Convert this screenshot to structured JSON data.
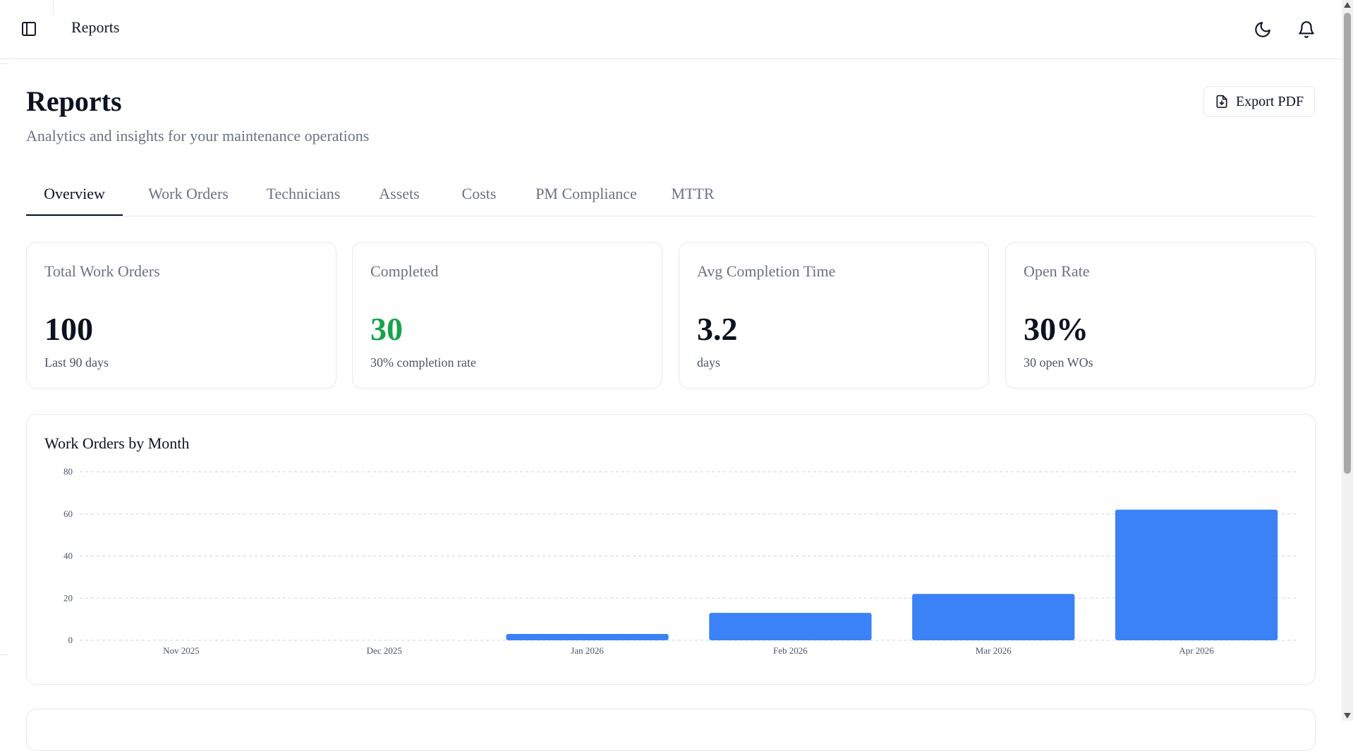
{
  "header": {
    "breadcrumb": "Reports",
    "icons": {
      "sidebar": "sidebar-toggle-icon",
      "theme": "moon-icon",
      "notifications": "bell-icon"
    }
  },
  "page": {
    "title": "Reports",
    "subtitle": "Analytics and insights for your maintenance operations",
    "export_label": "Export PDF"
  },
  "tabs": [
    {
      "label": "Overview",
      "active": true
    },
    {
      "label": "Work Orders",
      "active": false
    },
    {
      "label": "Technicians",
      "active": false
    },
    {
      "label": "Assets",
      "active": false
    },
    {
      "label": "Costs",
      "active": false
    },
    {
      "label": "PM Compliance",
      "active": false
    },
    {
      "label": "MTTR",
      "active": false
    }
  ],
  "stats": [
    {
      "label": "Total Work Orders",
      "value": "100",
      "note": "Last 90 days"
    },
    {
      "label": "Completed",
      "value": "30",
      "note": "30% completion rate"
    },
    {
      "label": "Avg Completion Time",
      "value": "3.2",
      "note": "days"
    },
    {
      "label": "Open Rate",
      "value": "30%",
      "note": "30 open WOs"
    }
  ],
  "colors": {
    "bar": "#3b82f6",
    "completed_value": "#16a34a"
  },
  "chart_data": {
    "type": "bar",
    "title": "Work Orders by Month",
    "categories": [
      "Nov 2025",
      "Dec 2025",
      "Jan 2026",
      "Feb 2026",
      "Mar 2026",
      "Apr 2026"
    ],
    "values": [
      0,
      0,
      3,
      13,
      22,
      62
    ],
    "xlabel": "",
    "ylabel": "",
    "ylim": [
      0,
      80
    ],
    "yticks": [
      0,
      20,
      40,
      60,
      80
    ],
    "grid": true,
    "legend": "none"
  }
}
